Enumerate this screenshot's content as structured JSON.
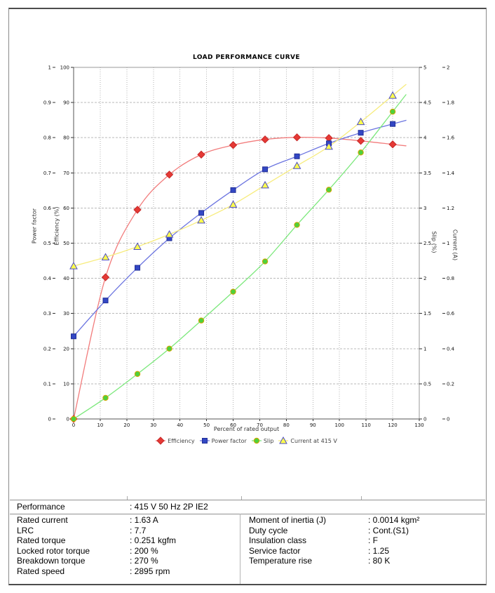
{
  "chart_data": {
    "type": "line",
    "title": "LOAD PERFORMANCE CURVE",
    "xlabel": "Percent of rated output",
    "xlim": [
      0,
      130
    ],
    "x_tick_step": 10,
    "grid": true,
    "legend_position": "bottom",
    "x": [
      0,
      12,
      24,
      36,
      48,
      60,
      72,
      84,
      96,
      108,
      120
    ],
    "axes": [
      {
        "id": "power_factor",
        "side": "left",
        "label": "Power factor",
        "min": 0,
        "max": 1,
        "step": 0.1
      },
      {
        "id": "efficiency",
        "side": "left",
        "label": "Efficiency (%)",
        "min": 0,
        "max": 100,
        "step": 10
      },
      {
        "id": "slip",
        "side": "right",
        "label": "Slip (%)",
        "min": 0,
        "max": 5,
        "step": 0.5
      },
      {
        "id": "current",
        "side": "right",
        "label": "Current (A)",
        "min": 0,
        "max": 2,
        "step": 0.2
      }
    ],
    "series": [
      {
        "name": "Efficiency",
        "axis": "efficiency",
        "marker": "diamond",
        "line_color": "#f27c7c",
        "marker_fill": "#e53935",
        "marker_stroke": "#c62828",
        "values": [
          0,
          40.3,
          59.5,
          69.5,
          75.2,
          77.9,
          79.5,
          80.1,
          79.9,
          79.1,
          78.1
        ]
      },
      {
        "name": "Power factor",
        "axis": "power_factor",
        "marker": "square",
        "line_color": "#6b74e0",
        "marker_fill": "#3347c4",
        "marker_stroke": "#202e96",
        "values": [
          0.235,
          0.337,
          0.43,
          0.514,
          0.586,
          0.651,
          0.71,
          0.747,
          0.784,
          0.814,
          0.839
        ]
      },
      {
        "name": "Slip",
        "axis": "slip",
        "marker": "circle",
        "line_color": "#7ce87c",
        "marker_fill": "#4ed13b",
        "marker_stroke": "#d9a300",
        "values": [
          0,
          0.3,
          0.64,
          1.0,
          1.4,
          1.81,
          2.24,
          2.76,
          3.26,
          3.79,
          4.37
        ]
      },
      {
        "name": "Current at 415 V",
        "axis": "current",
        "marker": "triangle",
        "line_color": "#f7ec7d",
        "marker_fill": "#ffff4d",
        "marker_stroke": "#4d4dc4",
        "values": [
          0.87,
          0.92,
          0.98,
          1.05,
          1.13,
          1.22,
          1.33,
          1.44,
          1.55,
          1.69,
          1.84
        ]
      }
    ]
  },
  "table": {
    "performance": {
      "label": "Performance",
      "value": ": 415 V 50 Hz 2P IE2"
    },
    "left_rows": [
      {
        "label": "Rated current",
        "value": ": 1.63 A"
      },
      {
        "label": "LRC",
        "value": ": 7.7"
      },
      {
        "label": "Rated torque",
        "value": ": 0.251 kgfm"
      },
      {
        "label": "Locked rotor torque",
        "value": ": 200 %"
      },
      {
        "label": "Breakdown torque",
        "value": ": 270 %"
      },
      {
        "label": "Rated speed",
        "value": ": 2895 rpm"
      }
    ],
    "right_rows": [
      {
        "label": "Moment of inertia (J)",
        "value": ": 0.0014 kgm²"
      },
      {
        "label": "Duty cycle",
        "value": ": Cont.(S1)"
      },
      {
        "label": "Insulation class",
        "value": ": F"
      },
      {
        "label": "Service factor",
        "value": ": 1.25"
      },
      {
        "label": "Temperature rise",
        "value": ": 80 K"
      }
    ]
  }
}
